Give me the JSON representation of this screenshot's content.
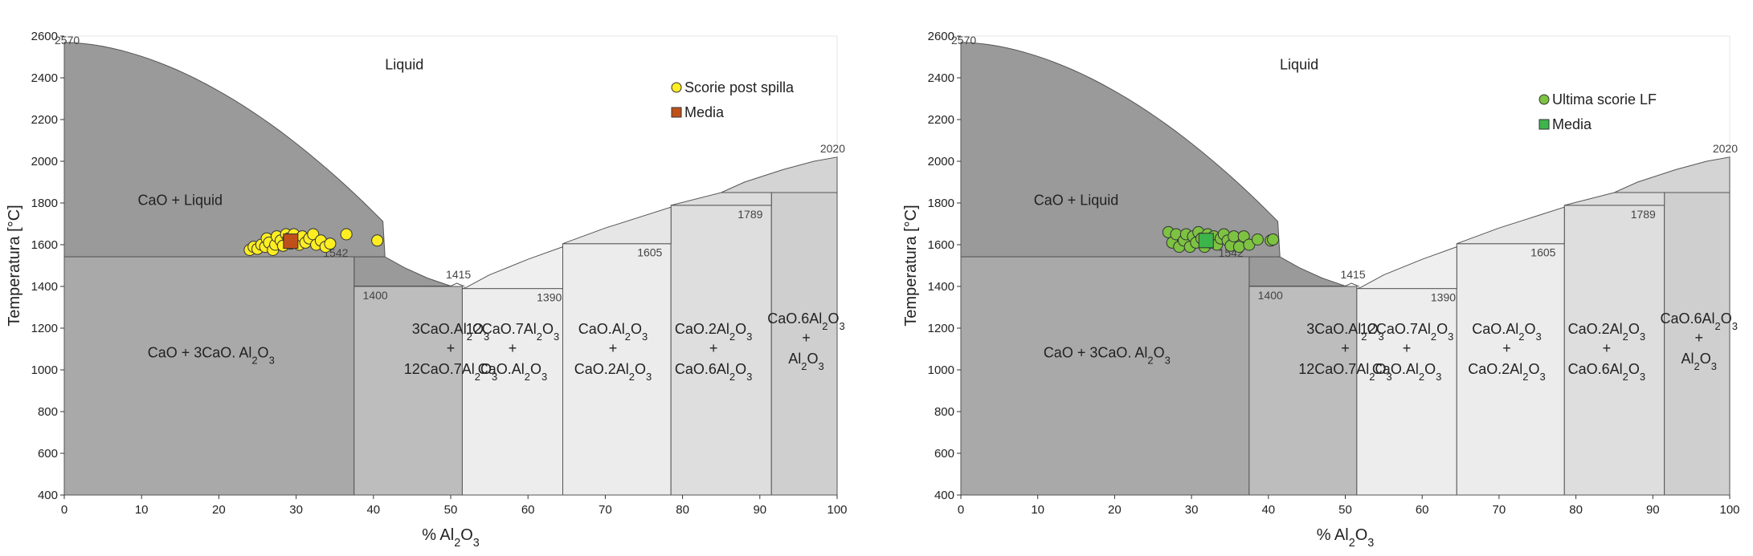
{
  "chart_data": [
    {
      "type": "scatter",
      "xlabel": "% Al2O3",
      "ylabel": "Temperatura [°C]",
      "xlim": [
        0,
        100
      ],
      "ylim": [
        400,
        2600
      ],
      "x_ticks": [
        "0",
        "10",
        "20",
        "30",
        "40",
        "50",
        "60",
        "70",
        "80",
        "90",
        "100"
      ],
      "y_ticks": [
        "400",
        "600",
        "800",
        "1000",
        "1200",
        "1400",
        "1600",
        "1800",
        "2000",
        "2200",
        "2400",
        "2600"
      ],
      "annotations": [
        "2570",
        "1542",
        "1415",
        "1400",
        "1390",
        "1605",
        "1789",
        "2020"
      ],
      "regions": [
        "Liquid",
        "CaO + Liquid",
        "CaO + 3CaO. Al2O3",
        "3CaO.Al2O3 + 12CaO.7Al2O3",
        "12CaO.7Al2O3 + CaO.Al2O3",
        "CaO.Al2O3 + CaO.2Al2O3",
        "CaO.2Al2O3 + CaO.6Al2O3",
        "CaO.6Al2O3 + Al2O3"
      ],
      "series": [
        {
          "name": "Scorie post spilla",
          "color": "#ffee22",
          "marker": "circle",
          "points": [
            [
              24,
              1575
            ],
            [
              24.5,
              1590
            ],
            [
              25,
              1580
            ],
            [
              25.5,
              1600
            ],
            [
              26,
              1590
            ],
            [
              26.2,
              1630
            ],
            [
              26.5,
              1610
            ],
            [
              27,
              1575
            ],
            [
              27.3,
              1600
            ],
            [
              27.5,
              1640
            ],
            [
              28,
              1620
            ],
            [
              28.3,
              1595
            ],
            [
              28.7,
              1650
            ],
            [
              29,
              1630
            ],
            [
              29.3,
              1605
            ],
            [
              29.7,
              1650
            ],
            [
              30,
              1620
            ],
            [
              30.4,
              1600
            ],
            [
              30.8,
              1640
            ],
            [
              31.2,
              1610
            ],
            [
              31.7,
              1630
            ],
            [
              32.2,
              1650
            ],
            [
              32.6,
              1600
            ],
            [
              33.2,
              1620
            ],
            [
              33.8,
              1590
            ],
            [
              34.4,
              1605
            ],
            [
              36.5,
              1650
            ],
            [
              40.5,
              1620
            ]
          ]
        },
        {
          "name": "Media",
          "color": "#c0501a",
          "marker": "square",
          "points": [
            [
              29.3,
              1617
            ]
          ]
        }
      ]
    },
    {
      "type": "scatter",
      "xlabel": "% Al2O3",
      "ylabel": "Temperatura [°C]",
      "xlim": [
        0,
        100
      ],
      "ylim": [
        400,
        2600
      ],
      "x_ticks": [
        "0",
        "10",
        "20",
        "30",
        "40",
        "50",
        "60",
        "70",
        "80",
        "90",
        "100"
      ],
      "y_ticks": [
        "400",
        "600",
        "800",
        "1000",
        "1200",
        "1400",
        "1600",
        "1800",
        "2000",
        "2200",
        "2400",
        "2600"
      ],
      "annotations": [
        "2570",
        "1542",
        "1415",
        "1400",
        "1390",
        "1605",
        "1789",
        "2020"
      ],
      "regions": [
        "Liquid",
        "CaO + Liquid",
        "CaO + 3CaO. Al2O3",
        "3CaO.Al2O3 + 12CaO.7Al2O3",
        "12CaO.7Al2O3 + CaO.Al2O3",
        "CaO.Al2O3 + CaO.2Al2O3",
        "CaO.2Al2O3 + CaO.6Al2O3",
        "CaO.6Al2O3 + Al2O3"
      ],
      "series": [
        {
          "name": "Ultima scorie LF",
          "color": "#7dc242",
          "marker": "circle",
          "points": [
            [
              27,
              1660
            ],
            [
              27.5,
              1610
            ],
            [
              28,
              1650
            ],
            [
              28.4,
              1590
            ],
            [
              29,
              1620
            ],
            [
              29.3,
              1650
            ],
            [
              29.8,
              1590
            ],
            [
              30.2,
              1640
            ],
            [
              30.6,
              1610
            ],
            [
              30.9,
              1660
            ],
            [
              31.3,
              1630
            ],
            [
              31.7,
              1590
            ],
            [
              32.1,
              1650
            ],
            [
              32.5,
              1610
            ],
            [
              32.9,
              1640
            ],
            [
              33.3,
              1600
            ],
            [
              33.8,
              1630
            ],
            [
              34.2,
              1650
            ],
            [
              34.7,
              1620
            ],
            [
              35.1,
              1595
            ],
            [
              35.5,
              1640
            ],
            [
              36.2,
              1590
            ],
            [
              36.8,
              1640
            ],
            [
              37.5,
              1600
            ],
            [
              38.6,
              1625
            ],
            [
              40.3,
              1620
            ],
            [
              40.6,
              1625
            ]
          ]
        },
        {
          "name": "Media",
          "color": "#3cb54a",
          "marker": "square",
          "points": [
            [
              31.9,
              1620
            ]
          ]
        }
      ]
    }
  ]
}
